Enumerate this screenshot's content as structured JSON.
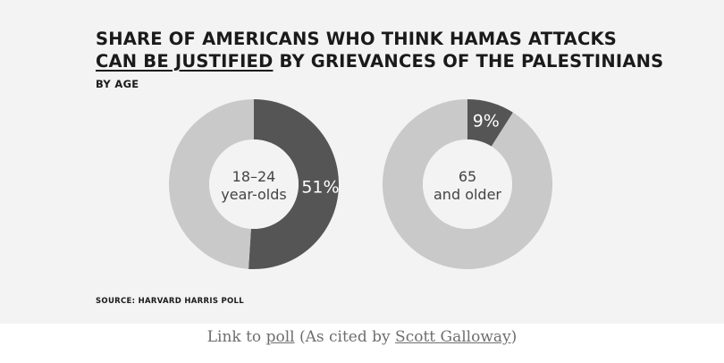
{
  "figure": {
    "title_line_1": "SHARE OF AMERICANS WHO THINK HAMAS ATTACKS",
    "title_line_2_underlined": "CAN BE JUSTIFIED",
    "title_line_2_rest": " BY GRIEVANCES OF THE PALESTINIANS",
    "subtitle": "BY AGE",
    "source": "SOURCE: HARVARD HARRIS POLL"
  },
  "chart_data": [
    {
      "type": "pie",
      "variant": "donut",
      "group_label_line_1": "18–24",
      "group_label_line_2": "year-olds",
      "slices": [
        {
          "label": "51%",
          "value": 51,
          "color": "#555555"
        },
        {
          "label": "",
          "value": 49,
          "color": "#c9c9c9"
        }
      ]
    },
    {
      "type": "pie",
      "variant": "donut",
      "group_label_line_1": "65",
      "group_label_line_2": "and older",
      "slices": [
        {
          "label": "9%",
          "value": 9,
          "color": "#555555"
        },
        {
          "label": "",
          "value": 91,
          "color": "#c9c9c9"
        }
      ]
    }
  ],
  "caption": {
    "prefix": "Link to ",
    "poll_link": "poll",
    "middle": " (As cited by ",
    "author_link": "Scott Galloway",
    "suffix": ")"
  }
}
